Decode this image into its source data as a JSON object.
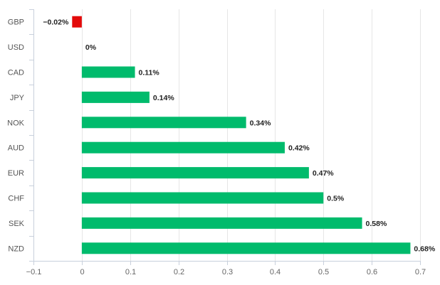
{
  "chart_data": {
    "type": "bar",
    "orientation": "horizontal",
    "categories": [
      "GBP",
      "USD",
      "CAD",
      "JPY",
      "NOK",
      "AUD",
      "EUR",
      "CHF",
      "SEK",
      "NZD"
    ],
    "values": [
      -0.02,
      0,
      0.11,
      0.14,
      0.34,
      0.42,
      0.47,
      0.5,
      0.58,
      0.68
    ],
    "data_labels": [
      "−0.02%",
      "0%",
      "0.11%",
      "0.14%",
      "0.34%",
      "0.42%",
      "0.47%",
      "0.5%",
      "0.58%",
      "0.68%"
    ],
    "xlim": [
      -0.1,
      0.7
    ],
    "x_ticks": [
      -0.1,
      0,
      0.1,
      0.2,
      0.3,
      0.4,
      0.5,
      0.6,
      0.7
    ],
    "x_tick_labels": [
      "−0.1",
      "0",
      "0.1",
      "0.2",
      "0.3",
      "0.4",
      "0.5",
      "0.6",
      "0.7"
    ],
    "grid": "vertical",
    "legend": "none",
    "colors": {
      "positive": "#00bb6c",
      "negative": "#e30a0a"
    }
  }
}
